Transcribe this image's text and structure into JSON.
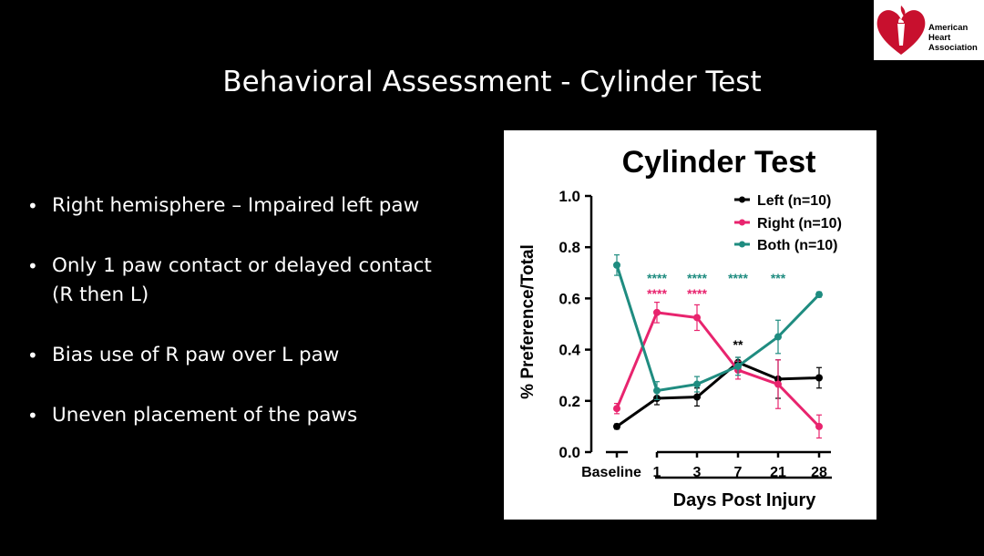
{
  "slide": {
    "title": "Behavioral Assessment - Cylinder Test",
    "bullets": [
      "Right hemisphere – Impaired left paw",
      "Only 1 paw contact or delayed contact\n(R then L)",
      "Bias use of R paw over L paw",
      "Uneven placement of the paws"
    ]
  },
  "logo": {
    "text": "American\nHeart\nAssociation",
    "icon": "heart-torch-icon",
    "color": "#c8102e"
  },
  "chart_data": {
    "type": "line",
    "title": "Cylinder Test",
    "xlabel": "Days Post Injury",
    "ylabel": "% Preference/Total",
    "categories": [
      "Baseline",
      "1",
      "3",
      "7",
      "21",
      "28"
    ],
    "ylim": [
      0,
      1.0
    ],
    "yticks": [
      "0.0",
      "0.2",
      "0.4",
      "0.6",
      "0.8",
      "1.0"
    ],
    "grid": false,
    "legend_position": "top-right",
    "series": [
      {
        "name": "Left (n=10)",
        "color": "#000000",
        "values": [
          0.1,
          0.21,
          0.215,
          0.35,
          0.285,
          0.29
        ],
        "errors": [
          0.01,
          0.025,
          0.035,
          0.02,
          0.075,
          0.04
        ]
      },
      {
        "name": "Right (n=10)",
        "color": "#e8246e",
        "values": [
          0.17,
          0.545,
          0.525,
          0.32,
          0.265,
          0.1
        ],
        "errors": [
          0.02,
          0.04,
          0.05,
          0.035,
          0.095,
          0.045
        ]
      },
      {
        "name": "Both (n=10)",
        "color": "#1f8c80",
        "values": [
          0.73,
          0.24,
          0.265,
          0.335,
          0.45,
          0.615
        ],
        "errors": [
          0.04,
          0.035,
          0.03,
          0.035,
          0.065,
          0.01
        ]
      }
    ],
    "annotations": [
      {
        "text": "****",
        "category": "1",
        "y": 0.69,
        "color": "#1f8c80"
      },
      {
        "text": "****",
        "category": "3",
        "y": 0.69,
        "color": "#1f8c80"
      },
      {
        "text": "****",
        "category": "7",
        "y": 0.69,
        "color": "#1f8c80"
      },
      {
        "text": "***",
        "category": "21",
        "y": 0.69,
        "color": "#1f8c80"
      },
      {
        "text": "****",
        "category": "1",
        "y": 0.63,
        "color": "#e8246e"
      },
      {
        "text": "****",
        "category": "3",
        "y": 0.63,
        "color": "#e8246e"
      },
      {
        "text": "**",
        "category": "7",
        "y": 0.43,
        "color": "#000000"
      }
    ]
  }
}
